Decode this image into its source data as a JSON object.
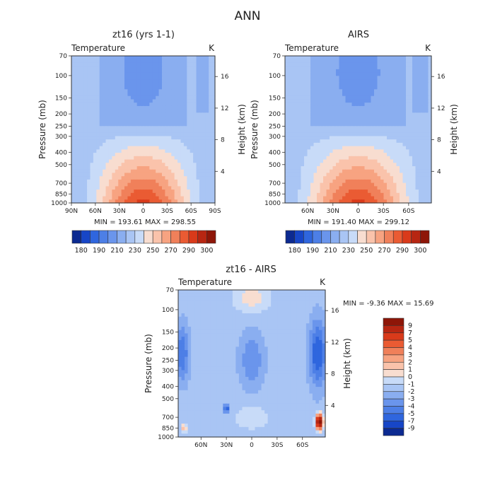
{
  "figure": {
    "title": "ANN"
  },
  "chart_data": [
    {
      "type": "heatmap",
      "panel": "model",
      "title": "zt16 (yrs 1-1)",
      "variable": "Temperature",
      "units": "K",
      "ylabel": "Pressure (mb)",
      "ylabel_right": "Height (km)",
      "xticks": [
        "90N",
        "60N",
        "30N",
        "0",
        "30S",
        "60S",
        "90S"
      ],
      "x_domain": [
        90,
        -90
      ],
      "pressure_ticks": [
        "70",
        "100",
        "150",
        "200",
        "250",
        "300",
        "400",
        "500",
        "700",
        "850",
        "1000"
      ],
      "pressure_range": [
        70,
        1000
      ],
      "y_log": true,
      "height_ticks": [
        "4",
        "8",
        "12",
        "16"
      ],
      "stats": "MIN = 193.61   MAX = 298.55",
      "min": 193.61,
      "max": 298.55,
      "colorbar": {
        "labels": [
          "180",
          "190",
          "210",
          "230",
          "250",
          "270",
          "290",
          "300"
        ],
        "levels": [
          180,
          185,
          190,
          200,
          210,
          220,
          230,
          240,
          250,
          260,
          270,
          280,
          290,
          295,
          300
        ],
        "colors": [
          "#0c2a91",
          "#1746c7",
          "#2f66de",
          "#4d7fe6",
          "#6a95ec",
          "#8aaef0",
          "#a9c5f4",
          "#c8dbf8",
          "#f8ddd0",
          "#fac3ab",
          "#f7a381",
          "#f0805a",
          "#ea5b33",
          "#d93a1a",
          "#b72612",
          "#8e1608"
        ]
      }
    },
    {
      "type": "heatmap",
      "panel": "obs",
      "title": "AIRS",
      "variable": "Temperature",
      "units": "K",
      "ylabel": "Pressure (mb)",
      "ylabel_right": "Height (km)",
      "xticks": [
        "60N",
        "30N",
        "0",
        "30S",
        "60S"
      ],
      "x_domain": [
        87,
        -87
      ],
      "pressure_ticks": [
        "70",
        "100",
        "150",
        "200",
        "250",
        "300",
        "400",
        "500",
        "700",
        "850",
        "1000"
      ],
      "pressure_range": [
        70,
        1000
      ],
      "y_log": true,
      "height_ticks": [
        "4",
        "8",
        "12",
        "16"
      ],
      "stats": "MIN = 191.40   MAX = 299.12",
      "min": 191.4,
      "max": 299.12,
      "colorbar": {
        "labels": [
          "180",
          "190",
          "210",
          "230",
          "250",
          "270",
          "290",
          "300"
        ],
        "levels": [
          180,
          185,
          190,
          200,
          210,
          220,
          230,
          240,
          250,
          260,
          270,
          280,
          290,
          295,
          300
        ],
        "colors": [
          "#0c2a91",
          "#1746c7",
          "#2f66de",
          "#4d7fe6",
          "#6a95ec",
          "#8aaef0",
          "#a9c5f4",
          "#c8dbf8",
          "#f8ddd0",
          "#fac3ab",
          "#f7a381",
          "#f0805a",
          "#ea5b33",
          "#d93a1a",
          "#b72612",
          "#8e1608"
        ]
      }
    },
    {
      "type": "heatmap",
      "panel": "diff",
      "title": "zt16 - AIRS",
      "variable": "Temperature",
      "units": "K",
      "ylabel": "Pressure (mb)",
      "ylabel_right": "Height (km)",
      "xticks": [
        "60N",
        "30N",
        "0",
        "30S",
        "60S"
      ],
      "x_domain": [
        87,
        -87
      ],
      "pressure_ticks": [
        "70",
        "100",
        "150",
        "200",
        "250",
        "300",
        "400",
        "500",
        "700",
        "850",
        "1000"
      ],
      "pressure_range": [
        70,
        1000
      ],
      "y_log": true,
      "height_ticks": [
        "4",
        "8",
        "12",
        "16"
      ],
      "stats": "MIN =  -9.36   MAX =  15.69",
      "min": -9.36,
      "max": 15.69,
      "colorbar": {
        "labels": [
          "9",
          "7",
          "5",
          "4",
          "3",
          "2",
          "1",
          "0",
          "-1",
          "-2",
          "-3",
          "-4",
          "-5",
          "-7",
          "-9"
        ],
        "colors": [
          "#8e1608",
          "#b72612",
          "#d93a1a",
          "#ea5b33",
          "#f0805a",
          "#f7a381",
          "#fac3ab",
          "#f8ddd0",
          "#c8dbf8",
          "#a9c5f4",
          "#8aaef0",
          "#6a95ec",
          "#4d7fe6",
          "#2f66de",
          "#1746c7",
          "#0c2a91"
        ]
      }
    }
  ]
}
